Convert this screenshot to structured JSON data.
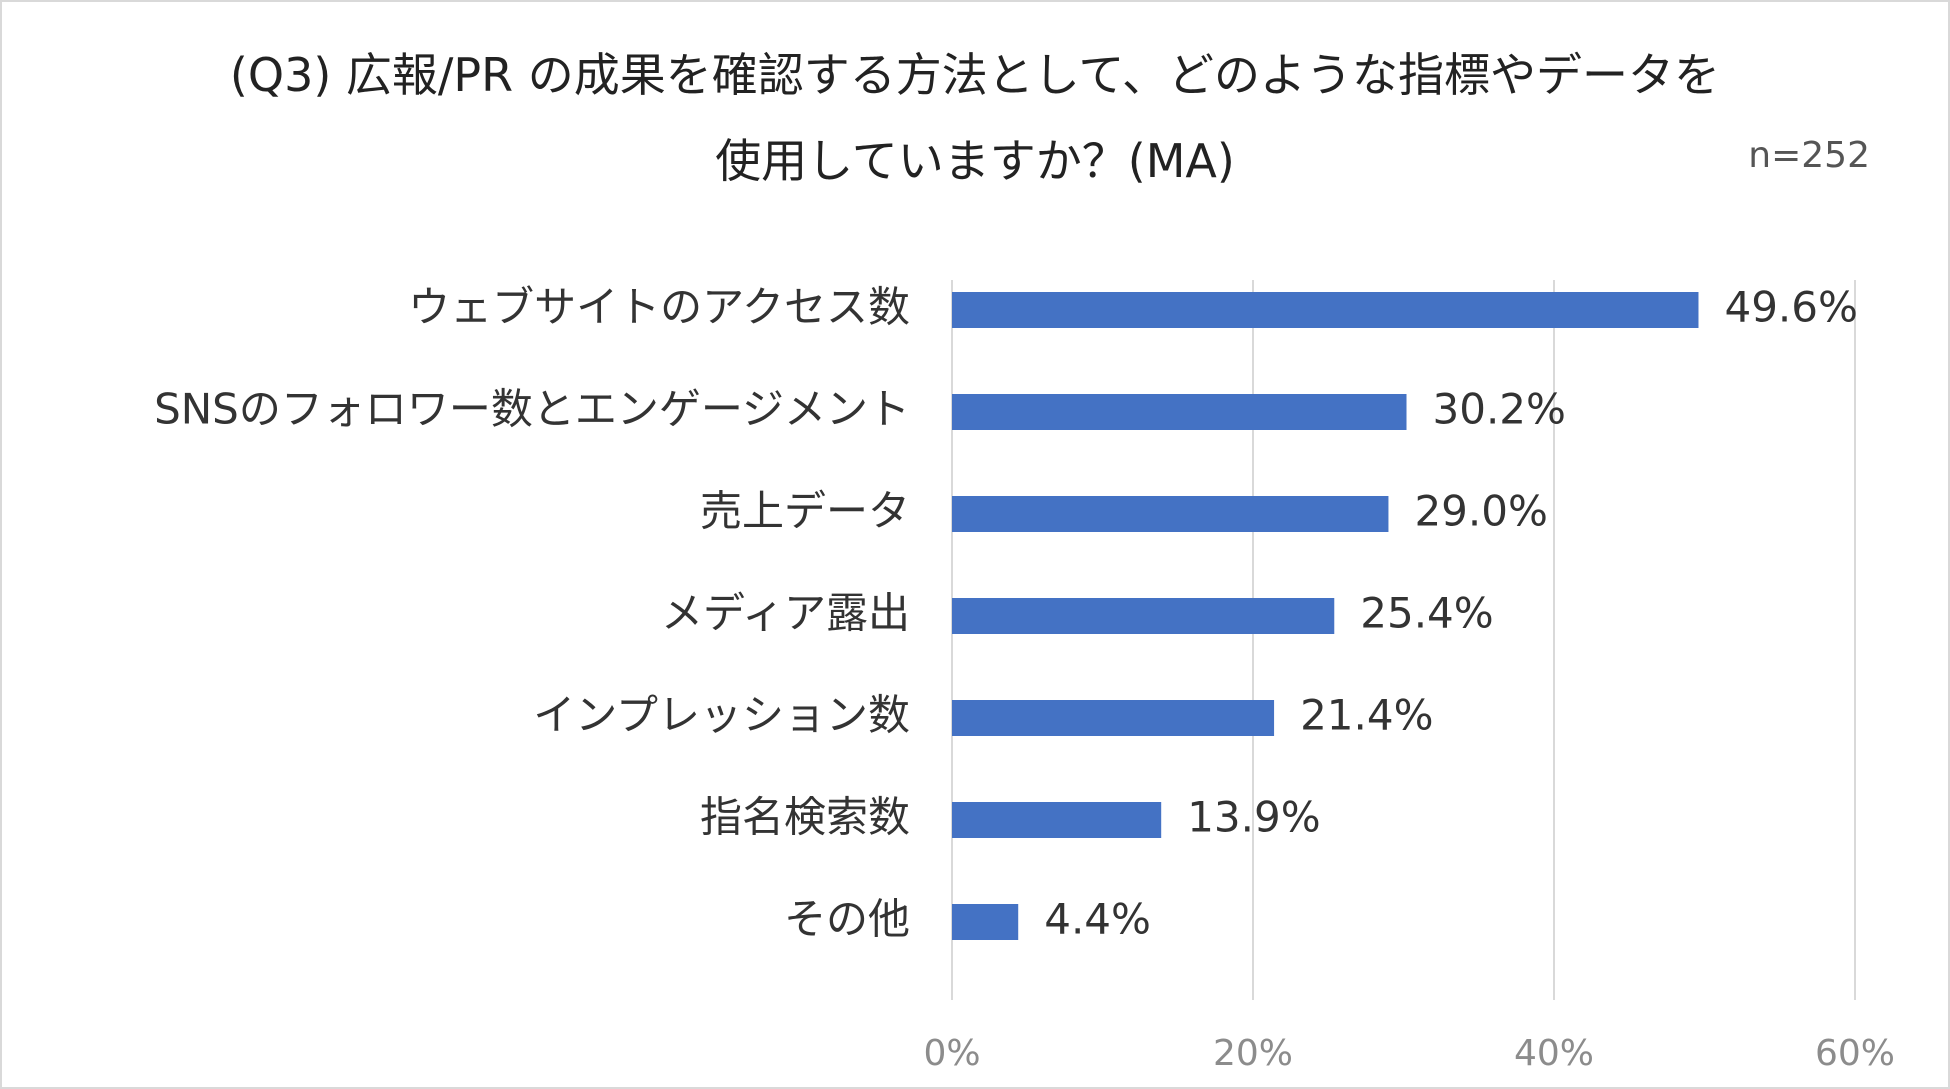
{
  "chart_data": {
    "type": "bar",
    "orientation": "horizontal",
    "title_line1": "(Q3) 広報/PR の成果を確認する方法として、どのような指標やデータを",
    "title_line2": "使用していますか？(MA)",
    "sample_note": "n=252",
    "categories": [
      "ウェブサイトのアクセス数",
      "SNSのフォロワー数とエンゲージメント",
      "売上データ",
      "メディア露出",
      "インプレッション数",
      "指名検索数",
      "その他"
    ],
    "values": [
      49.6,
      30.2,
      29.0,
      25.4,
      21.4,
      13.9,
      4.4
    ],
    "value_labels": [
      "49.6%",
      "30.2%",
      "29.0%",
      "25.4%",
      "21.4%",
      "13.9%",
      "4.4%"
    ],
    "xlim": [
      0,
      60
    ],
    "xticks": [
      0,
      20,
      40,
      60
    ],
    "xtick_labels": [
      "0%",
      "20%",
      "40%",
      "60%"
    ],
    "grid": true,
    "legend": "none",
    "colors": {
      "bar": "#4472C4",
      "grid": "#d9d9d9",
      "text": "#333333",
      "tick": "#8c8c8c"
    }
  }
}
